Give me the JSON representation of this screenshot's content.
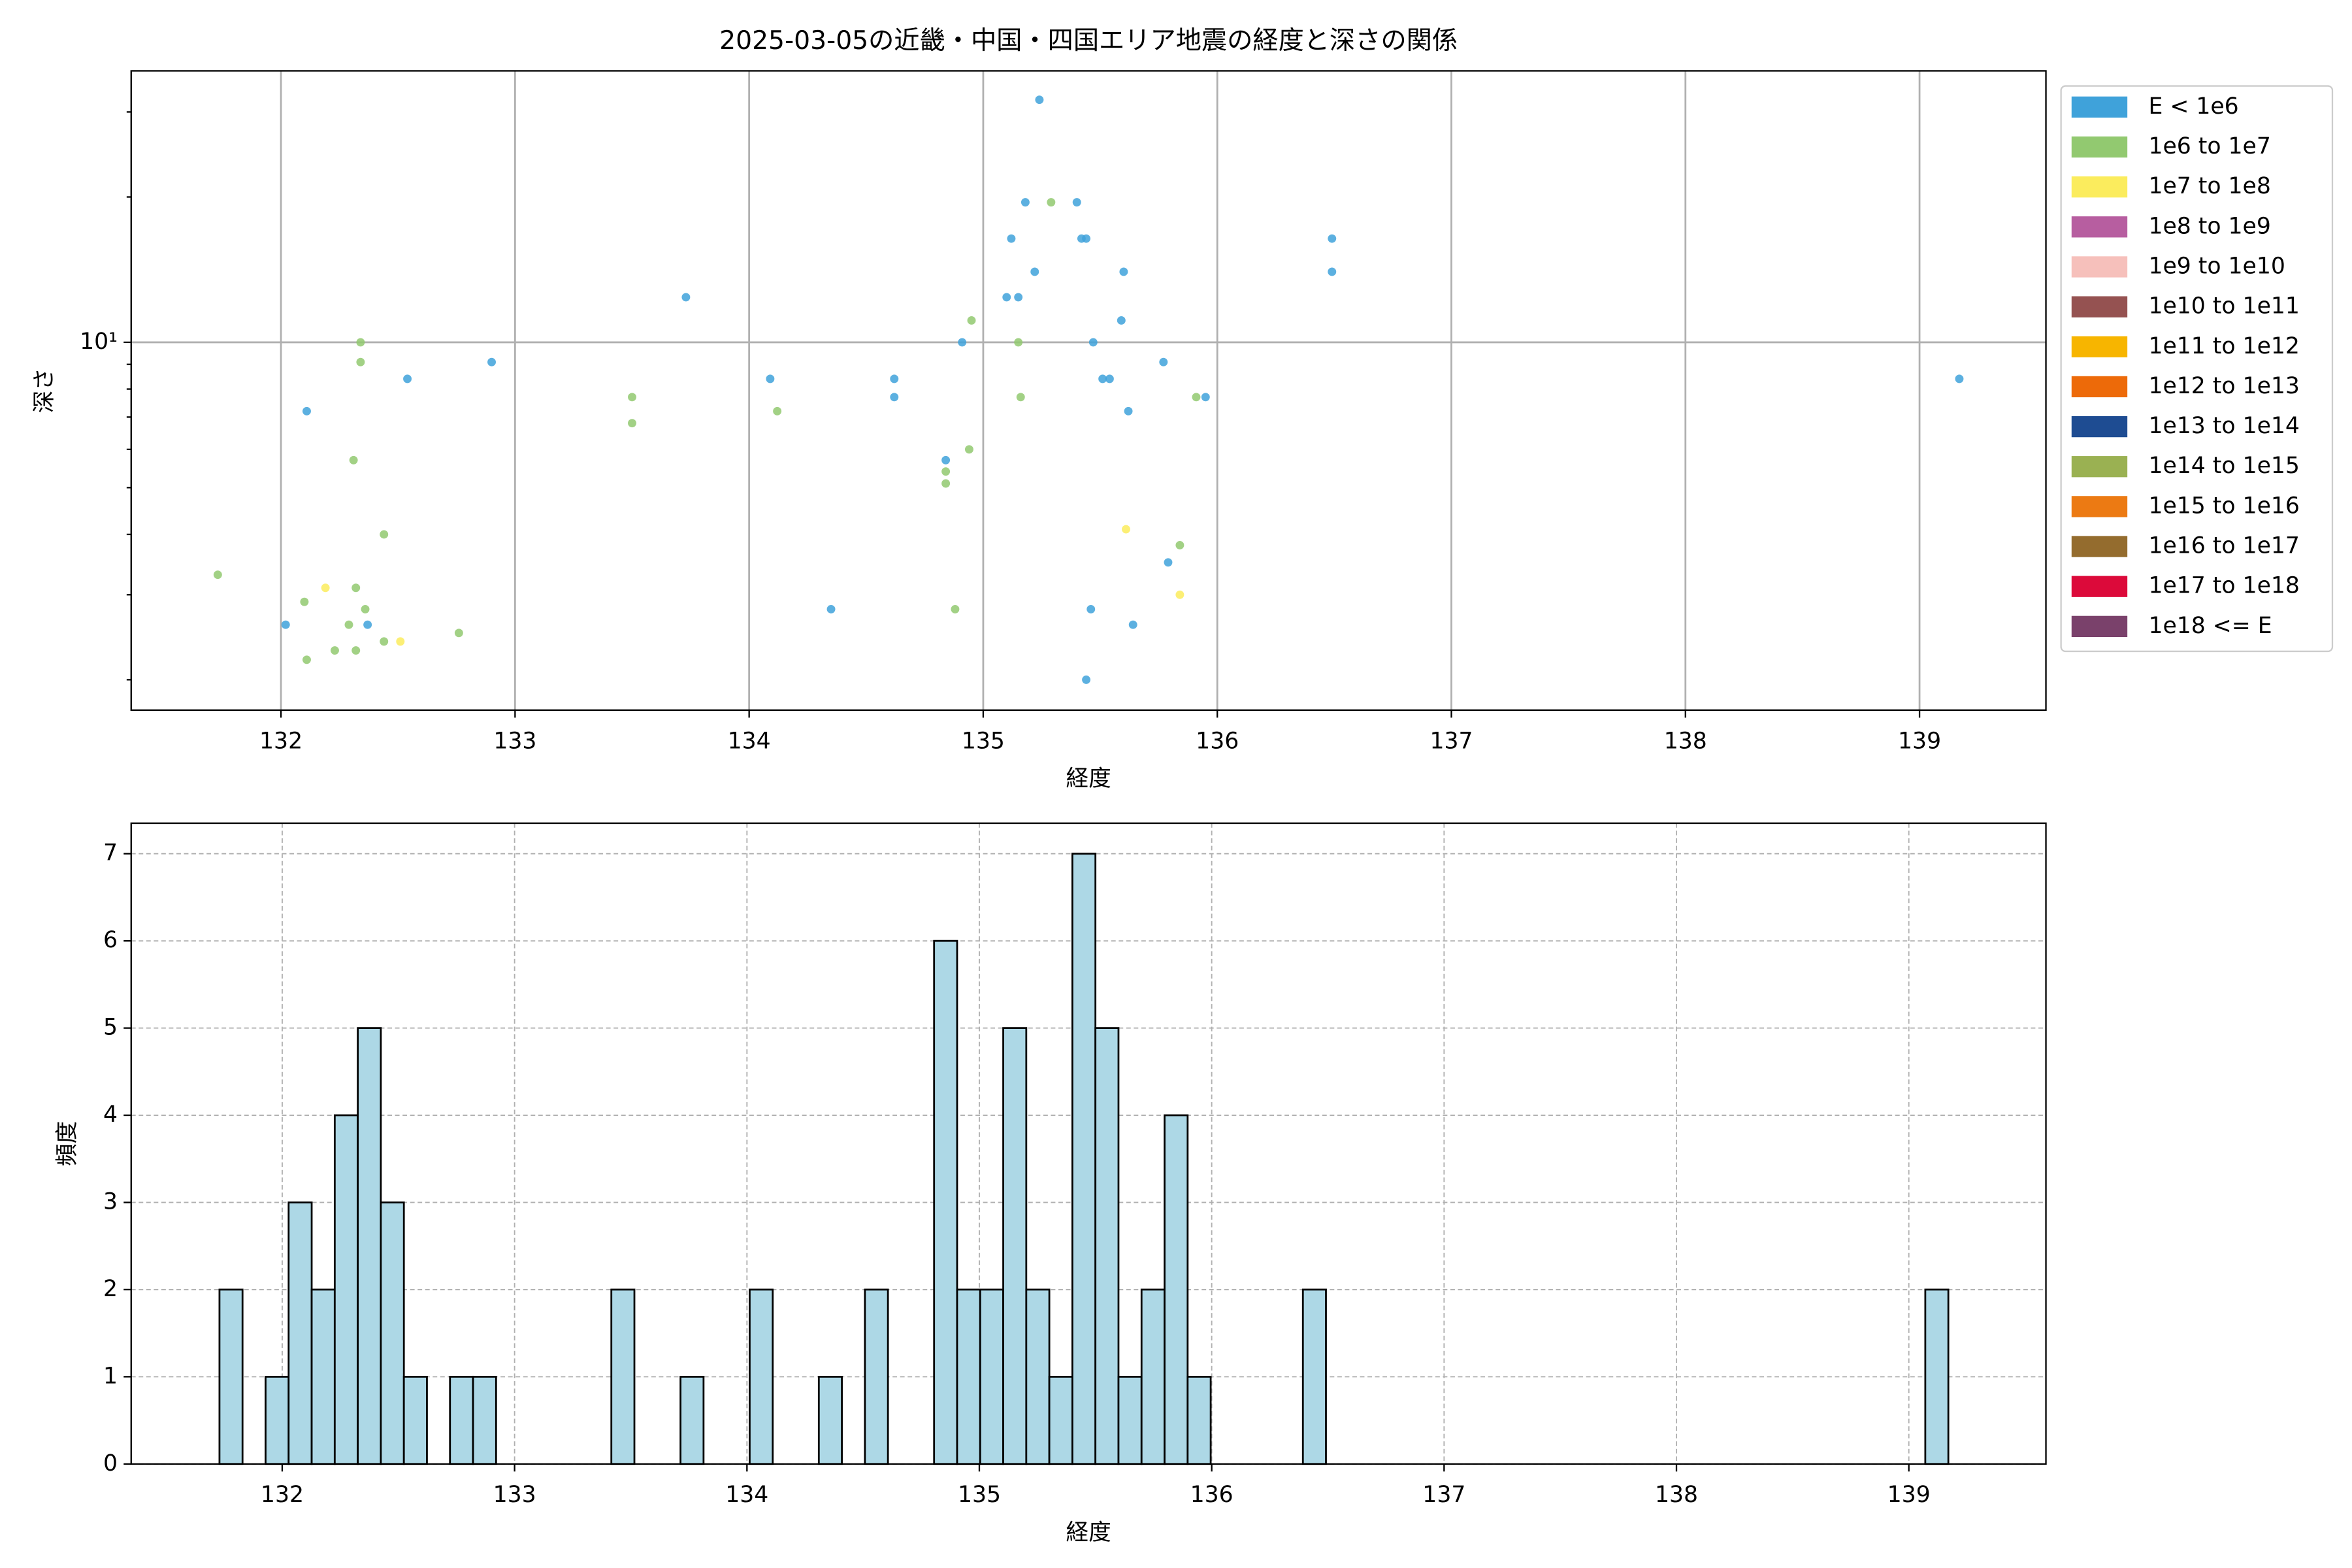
{
  "chart_data": [
    {
      "type": "scatter",
      "title": "2025-03-05の近畿・中国・四国エリア地震の経度と深さの関係",
      "x_label": "経度",
      "y_label": "深さ",
      "xlim": [
        131.36,
        139.54
      ],
      "xticks": [
        132,
        133,
        134,
        135,
        136,
        137,
        138,
        139
      ],
      "ylim": [
        1.73,
        36.5
      ],
      "y_scale": "log",
      "yticks": [
        {
          "value": 10,
          "label": "10¹"
        }
      ],
      "yminorticks": [
        2,
        3,
        4,
        5,
        6,
        7,
        8,
        9,
        20,
        30
      ],
      "grid": true,
      "grid_style": "solid",
      "legend": "outside-right",
      "series": [
        {
          "name": "E < 1e6",
          "color": "#3fa2da",
          "x": [
            135.24,
            135.18,
            135.4,
            135.12,
            135.42,
            135.44,
            135.22,
            135.1,
            135.15,
            133.73,
            135.6,
            136.49,
            136.49,
            135.59,
            134.91,
            135.47,
            132.9,
            135.77,
            132.54,
            134.09,
            134.62,
            135.51,
            135.54,
            139.17,
            134.62,
            135.95,
            135.62,
            132.11,
            134.84,
            135.79,
            134.35,
            132.02,
            132.37,
            135.46,
            135.64,
            135.44
          ],
          "y": [
            31.8,
            19.5,
            19.5,
            16.4,
            16.4,
            16.4,
            14.0,
            12.4,
            12.4,
            12.4,
            14.0,
            16.4,
            14.0,
            11.1,
            10,
            10,
            9.1,
            9.1,
            8.4,
            8.4,
            8.4,
            8.4,
            8.4,
            8.4,
            7.7,
            7.7,
            7.2,
            7.2,
            5.7,
            3.5,
            2.8,
            2.6,
            2.6,
            2.8,
            2.6,
            2.0
          ]
        },
        {
          "name": "1e6 to 1e7",
          "color": "#92c970",
          "x": [
            135.29,
            134.95,
            135.15,
            132.34,
            132.34,
            133.5,
            135.16,
            135.91,
            134.12,
            133.5,
            134.94,
            132.31,
            134.84,
            134.84,
            132.44,
            135.84,
            131.73,
            132.1,
            132.32,
            132.36,
            134.88,
            132.29,
            132.76,
            132.44,
            132.23,
            132.32,
            132.11
          ],
          "y": [
            19.5,
            11.1,
            10,
            10,
            9.1,
            7.7,
            7.7,
            7.7,
            7.2,
            6.8,
            6.0,
            5.7,
            5.4,
            5.1,
            4.0,
            3.8,
            3.3,
            2.9,
            3.1,
            2.8,
            2.8,
            2.6,
            2.5,
            2.4,
            2.3,
            2.3,
            2.2
          ]
        },
        {
          "name": "1e7 to 1e8",
          "color": "#fbec5d",
          "x": [
            132.19,
            135.61,
            135.84,
            132.51
          ],
          "y": [
            3.1,
            4.1,
            3.0,
            2.4
          ]
        },
        {
          "name": "1e8 to 1e9",
          "color": "#b75ea0",
          "x": [],
          "y": []
        },
        {
          "name": "1e9 to 1e10",
          "color": "#f6c0bb",
          "x": [],
          "y": []
        },
        {
          "name": "1e10 to 1e11",
          "color": "#955251",
          "x": [],
          "y": []
        },
        {
          "name": "1e11 to 1e12",
          "color": "#f7b500",
          "x": [],
          "y": []
        },
        {
          "name": "1e12 to 1e13",
          "color": "#ed6a09",
          "x": [],
          "y": []
        },
        {
          "name": "1e13 to 1e14",
          "color": "#1e4c92",
          "x": [],
          "y": []
        },
        {
          "name": "1e14 to 1e15",
          "color": "#9ab152",
          "x": [],
          "y": []
        },
        {
          "name": "1e15 to 1e16",
          "color": "#ec7a13",
          "x": [],
          "y": []
        },
        {
          "name": "1e16 to 1e17",
          "color": "#946c2e",
          "x": [],
          "y": []
        },
        {
          "name": "1e17 to 1e18",
          "color": "#dc0a3a",
          "x": [],
          "y": []
        },
        {
          "name": "1e18 <= E",
          "color": "#7a416b",
          "x": [],
          "y": []
        }
      ]
    },
    {
      "type": "histogram",
      "x_label": "経度",
      "y_label": "頻度",
      "color": "#add8e6",
      "xlim": [
        131.35,
        139.59
      ],
      "xticks": [
        132,
        133,
        134,
        135,
        136,
        137,
        138,
        139
      ],
      "ylim": [
        0,
        7.35
      ],
      "yticks": [
        0,
        1,
        2,
        3,
        4,
        5,
        6,
        7
      ],
      "grid": true,
      "grid_style": "dashed",
      "bins": [
        131.73,
        131.8292,
        131.9284,
        132.0276,
        132.1268,
        132.226,
        132.3252,
        132.4244,
        132.5236,
        132.6228,
        132.722,
        132.8212,
        132.9204,
        133.0196,
        133.1188,
        133.218,
        133.3172,
        133.4164,
        133.5156,
        133.6148,
        133.714,
        133.8132,
        133.9124,
        134.0116,
        134.1108,
        134.21,
        134.3092,
        134.4084,
        134.5076,
        134.6068,
        134.706,
        134.8052,
        134.9044,
        135.0036,
        135.1028,
        135.202,
        135.3012,
        135.4004,
        135.4996,
        135.5988,
        135.698,
        135.7972,
        135.8964,
        135.9956,
        136.0948,
        136.194,
        136.2932,
        136.3924,
        136.4916,
        136.5908,
        136.69,
        136.7892,
        136.8884,
        136.9876,
        137.0868,
        137.186,
        137.2852,
        137.3844,
        137.4836,
        137.5828,
        137.682,
        137.7812,
        137.8804,
        137.9796,
        138.0788,
        138.178,
        138.2772,
        138.3764,
        138.4756,
        138.5748,
        138.674,
        138.7732,
        138.8724,
        138.9716,
        139.0708,
        139.17
      ],
      "values": [
        2,
        0,
        1,
        3,
        2,
        4,
        5,
        3,
        1,
        0,
        1,
        1,
        0,
        0,
        0,
        0,
        0,
        2,
        0,
        0,
        1,
        0,
        0,
        2,
        0,
        0,
        1,
        0,
        2,
        0,
        0,
        6,
        2,
        2,
        5,
        2,
        1,
        7,
        5,
        1,
        2,
        4,
        1,
        0,
        0,
        0,
        0,
        2,
        0,
        0,
        0,
        0,
        0,
        0,
        0,
        0,
        0,
        0,
        0,
        0,
        0,
        0,
        0,
        0,
        0,
        0,
        0,
        0,
        0,
        0,
        0,
        0,
        0,
        0,
        2
      ]
    }
  ]
}
